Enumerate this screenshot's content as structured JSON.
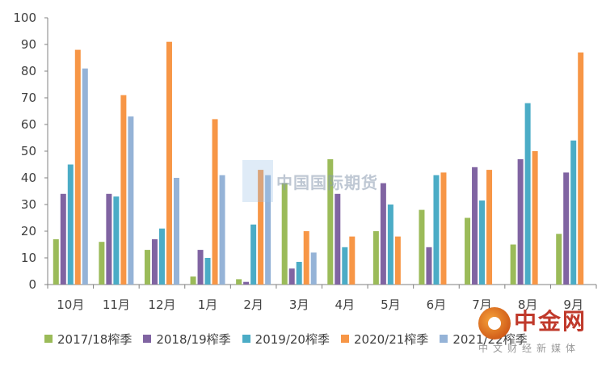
{
  "chart_data": {
    "type": "bar",
    "categories": [
      "10月",
      "11月",
      "12月",
      "1月",
      "2月",
      "3月",
      "4月",
      "5月",
      "6月",
      "7月",
      "8月",
      "9月"
    ],
    "series": [
      {
        "name": "2017/18榨季",
        "color": "#9bbb59",
        "values": [
          17,
          16,
          13,
          3,
          2,
          38,
          47,
          20,
          28,
          25,
          15,
          19
        ]
      },
      {
        "name": "2018/19榨季",
        "color": "#8064a2",
        "values": [
          34,
          34,
          17,
          13,
          1,
          6,
          34,
          38,
          14,
          44,
          47,
          42
        ]
      },
      {
        "name": "2019/20榨季",
        "color": "#4bacc6",
        "values": [
          45,
          33,
          21,
          10,
          22.5,
          8.5,
          14,
          30,
          41,
          31.5,
          68,
          54
        ]
      },
      {
        "name": "2020/21榨季",
        "color": "#f79646",
        "values": [
          88,
          71,
          91,
          62,
          43,
          20,
          18,
          18,
          42,
          43,
          50,
          87
        ]
      },
      {
        "name": "2021/22榨季",
        "color": "#95b3d7",
        "values": [
          81,
          63,
          40,
          41,
          41,
          12,
          null,
          null,
          null,
          null,
          null,
          null
        ]
      }
    ],
    "ylim": [
      0,
      100
    ],
    "yticks": [
      0,
      10,
      20,
      30,
      40,
      50,
      60,
      70,
      80,
      90,
      100
    ],
    "grid": false,
    "legend": "bottom"
  },
  "watermark": {
    "text": "中国国际期货"
  },
  "brand": {
    "name": "中金网",
    "subtitle": "中文财经新媒体"
  }
}
